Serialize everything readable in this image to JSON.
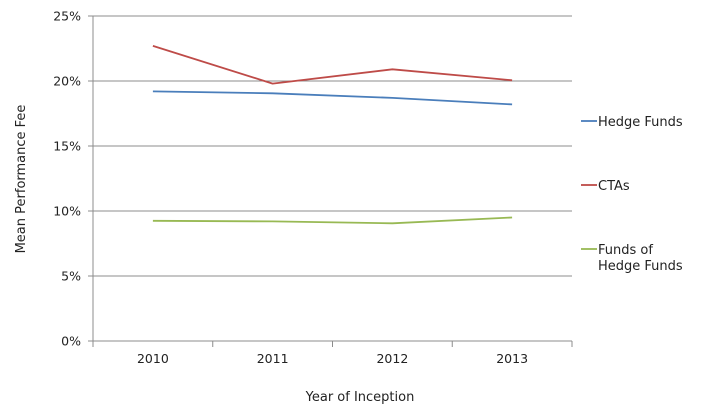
{
  "chart_data": {
    "type": "line",
    "title": "",
    "xlabel": "Year of Inception",
    "ylabel": "Mean Performance Fee",
    "categories": [
      "2010",
      "2011",
      "2012",
      "2013"
    ],
    "ylim": [
      0,
      25
    ],
    "y_ticks": [
      0,
      5,
      10,
      15,
      20,
      25
    ],
    "y_tick_labels": [
      "0%",
      "5%",
      "10%",
      "15%",
      "20%",
      "25%"
    ],
    "grid": "horizontal",
    "legend_position": "right",
    "series": [
      {
        "name": "Hedge Funds",
        "color": "#4a7ebb",
        "values": [
          19.2,
          19.05,
          18.7,
          18.2
        ]
      },
      {
        "name": "CTAs",
        "color": "#be4b48",
        "values": [
          22.7,
          19.8,
          20.9,
          20.05
        ]
      },
      {
        "name": "Funds of Hedge Funds",
        "legend_lines": [
          "Funds of",
          "Hedge Funds"
        ],
        "color": "#98b954",
        "values": [
          9.25,
          9.2,
          9.05,
          9.5
        ]
      }
    ]
  }
}
